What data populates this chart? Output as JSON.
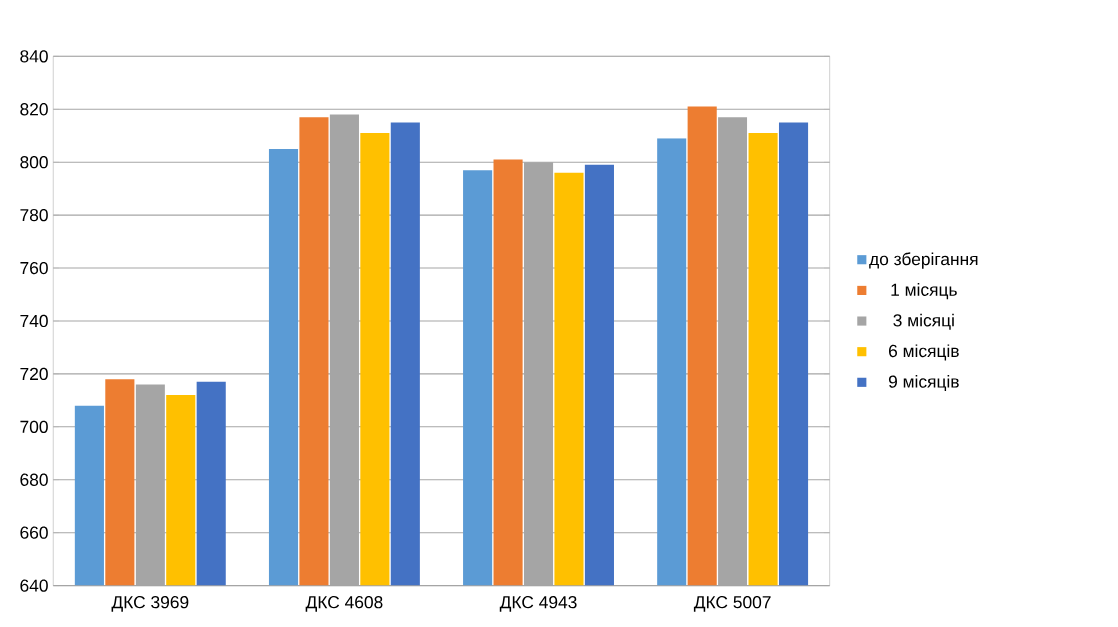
{
  "chart_data": {
    "type": "bar",
    "categories": [
      "ДКС 3969",
      "ДКС 4608",
      "ДКС 4943",
      "ДКС 5007"
    ],
    "series": [
      {
        "name": "до зберігання",
        "color": "#5b9bd5",
        "values": [
          708,
          805,
          797,
          809
        ]
      },
      {
        "name": "1 місяць",
        "color": "#ed7d31",
        "values": [
          718,
          817,
          801,
          821
        ]
      },
      {
        "name": "3 місяці",
        "color": "#a5a5a5",
        "values": [
          716,
          818,
          800,
          817
        ]
      },
      {
        "name": "6 місяців",
        "color": "#ffc000",
        "values": [
          712,
          811,
          796,
          811
        ]
      },
      {
        "name": "9 місяців",
        "color": "#4472c4",
        "values": [
          717,
          815,
          799,
          815
        ]
      }
    ],
    "ylim": [
      640,
      840
    ],
    "yticks": [
      640,
      660,
      680,
      700,
      720,
      740,
      760,
      780,
      800,
      820,
      840
    ],
    "grid": "y",
    "legend": "right"
  }
}
